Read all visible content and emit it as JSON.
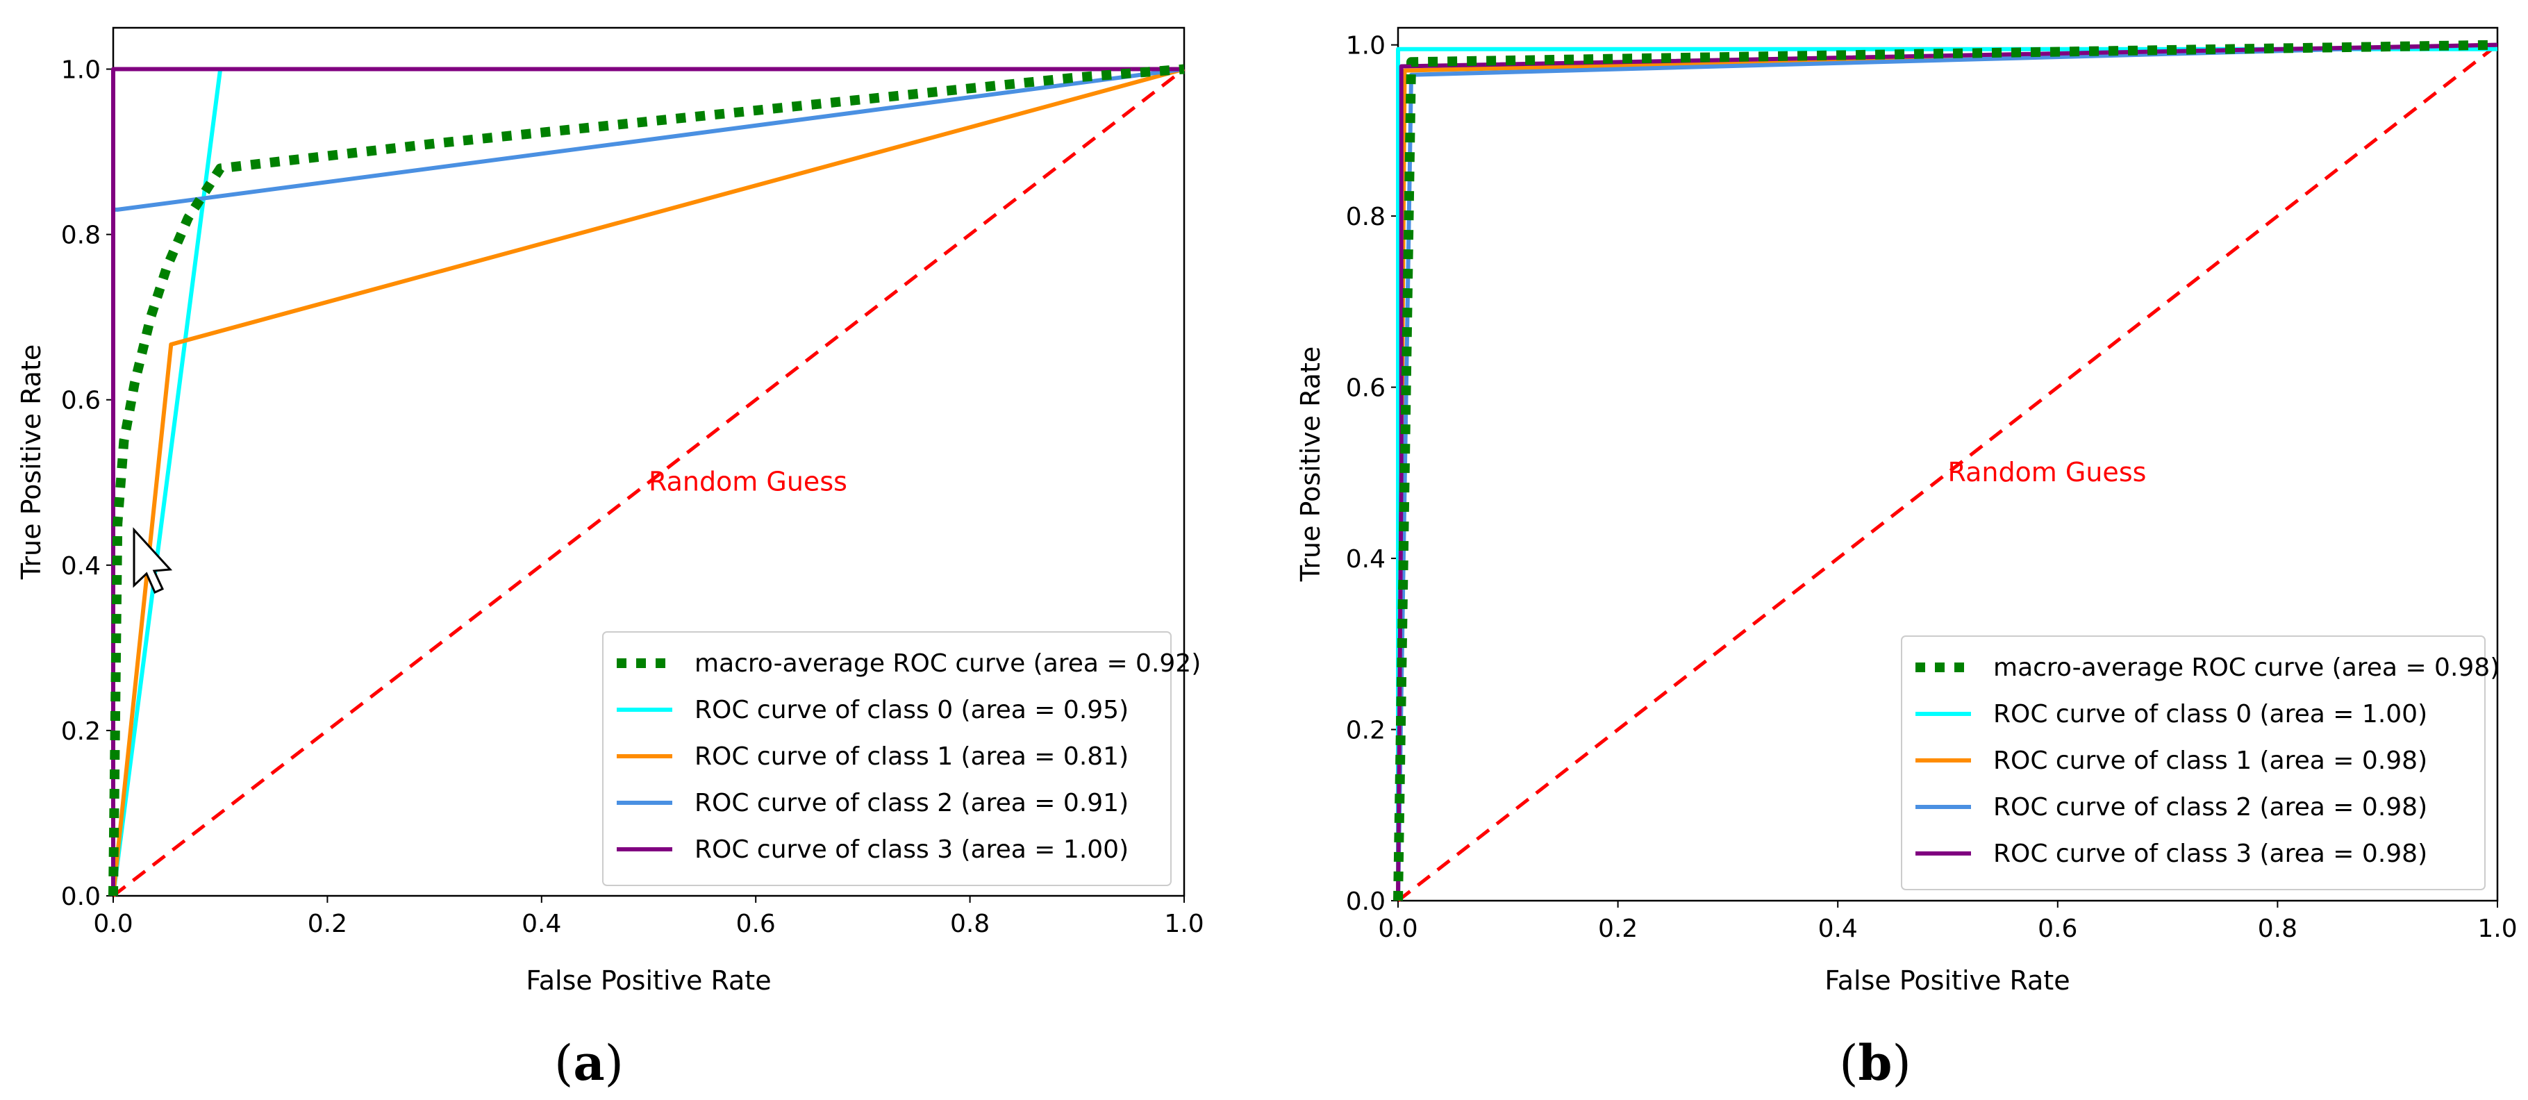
{
  "chart_data": [
    {
      "type": "line",
      "panel_label_open": "(",
      "panel_label_letter": "a",
      "panel_label_close": ")",
      "xlabel": "False Positive Rate",
      "ylabel": "True Positive Rate",
      "xlim": [
        0.0,
        1.0
      ],
      "ylim": [
        0.0,
        1.05
      ],
      "xticks": [
        "0.0",
        "0.2",
        "0.4",
        "0.6",
        "0.8",
        "1.0"
      ],
      "yticks": [
        "0.0",
        "0.2",
        "0.4",
        "0.6",
        "0.8",
        "1.0"
      ],
      "annotation": {
        "text": "Random Guess",
        "x": 0.5,
        "y": 0.49
      },
      "legend_position": "lower right",
      "series": [
        {
          "name": "macro-average ROC curve (area = 0.92)",
          "color": "#008000",
          "style": "dotted",
          "x": [
            0,
            0.004,
            0.01,
            0.02,
            0.035,
            0.05,
            0.07,
            0.1,
            0.3,
            0.6,
            0.9,
            1.0
          ],
          "y": [
            0,
            0.45,
            0.55,
            0.62,
            0.7,
            0.76,
            0.82,
            0.88,
            0.91,
            0.95,
            0.99,
            1.0
          ]
        },
        {
          "name": "ROC curve of class 0 (area = 0.95)",
          "color": "#00ffff",
          "style": "solid",
          "x": [
            0,
            0.1,
            1.0
          ],
          "y": [
            0,
            1.0,
            1.0
          ]
        },
        {
          "name": "ROC curve of class 1 (area = 0.81)",
          "color": "#ff8c00",
          "style": "solid",
          "x": [
            0,
            0.054,
            1.0
          ],
          "y": [
            0,
            0.667,
            1.0
          ]
        },
        {
          "name": "ROC curve of class 2 (area = 0.91)",
          "color": "#4a90e2",
          "style": "solid",
          "x": [
            0,
            0,
            0.004,
            1.0
          ],
          "y": [
            0,
            0.83,
            0.83,
            1.0
          ]
        },
        {
          "name": "ROC curve of class 3 (area = 1.00)",
          "color": "#800080",
          "style": "solid",
          "x": [
            0,
            0,
            1.0
          ],
          "y": [
            0,
            1.0,
            1.0
          ]
        },
        {
          "name": "Random Guess baseline",
          "color": "#ff0000",
          "style": "dashed",
          "in_legend": false,
          "x": [
            0,
            1.0
          ],
          "y": [
            0,
            1.0
          ]
        }
      ]
    },
    {
      "type": "line",
      "panel_label_open": "(",
      "panel_label_letter": "b",
      "panel_label_close": ")",
      "xlabel": "False Positive Rate",
      "ylabel": "True Positive Rate",
      "xlim": [
        0.0,
        1.0
      ],
      "ylim": [
        0.0,
        1.02
      ],
      "xticks": [
        "0.0",
        "0.2",
        "0.4",
        "0.6",
        "0.8",
        "1.0"
      ],
      "yticks": [
        "0.0",
        "0.2",
        "0.4",
        "0.6",
        "0.8",
        "1.0"
      ],
      "annotation": {
        "text": "Random Guess",
        "x": 0.5,
        "y": 0.49
      },
      "legend_position": "lower right",
      "series": [
        {
          "name": "macro-average ROC curve (area = 0.98)",
          "color": "#008000",
          "style": "dotted",
          "x": [
            0,
            0.012,
            0.5,
            1.0
          ],
          "y": [
            0,
            0.98,
            0.99,
            1.0
          ]
        },
        {
          "name": "ROC curve of class 0 (area = 1.00)",
          "color": "#00ffff",
          "style": "solid",
          "x": [
            0,
            0,
            1.0
          ],
          "y": [
            0,
            0.995,
            0.995
          ]
        },
        {
          "name": "ROC curve of class 1 (area = 0.98)",
          "color": "#ff8c00",
          "style": "solid",
          "x": [
            0,
            0.006,
            1.0
          ],
          "y": [
            0,
            0.97,
            1.0
          ]
        },
        {
          "name": "ROC curve of class 2 (area = 0.98)",
          "color": "#4a90e2",
          "style": "solid",
          "x": [
            0,
            0.012,
            1.0
          ],
          "y": [
            0,
            0.965,
            1.0
          ]
        },
        {
          "name": "ROC curve of class 3 (area = 0.98)",
          "color": "#800080",
          "style": "solid",
          "x": [
            0,
            0.003,
            0.003,
            1.0
          ],
          "y": [
            0,
            0.5,
            0.975,
            1.0
          ]
        },
        {
          "name": "Random Guess baseline",
          "color": "#ff0000",
          "style": "dashed",
          "in_legend": false,
          "x": [
            0,
            1.0
          ],
          "y": [
            0,
            1.0
          ]
        }
      ]
    }
  ]
}
